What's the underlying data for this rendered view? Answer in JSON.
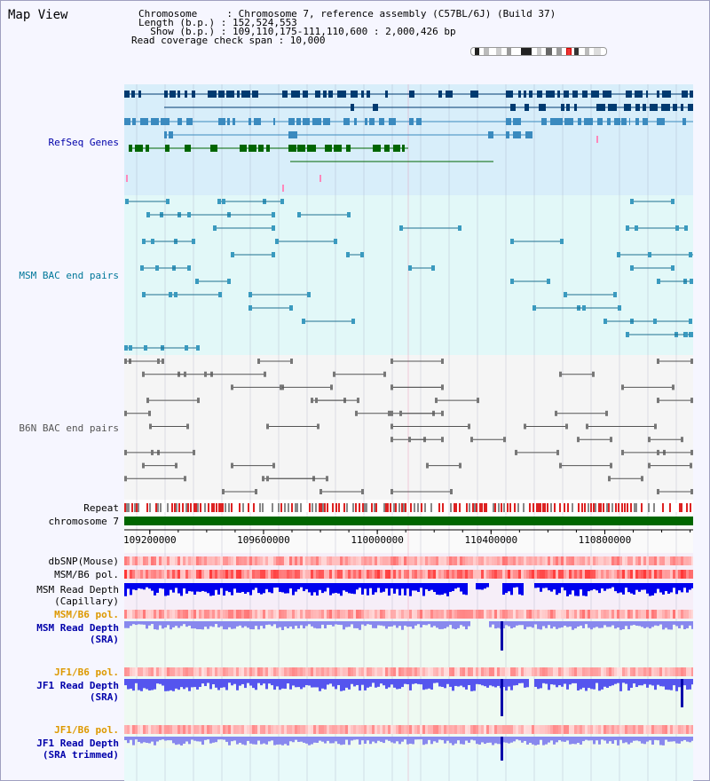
{
  "title": "Map View",
  "info": {
    "chromosome": "Chromosome     : Chromosome 7, reference assembly (C57BL/6J) (Build 37)",
    "length": "Length (b.p.) : 152,524,553",
    "show": "  Show (b.p.) : 109,110,175-111,110,600 : 2,000,426 bp",
    "coverage": "Read coverage check span : 10,000"
  },
  "tracks": {
    "refseq": "RefSeq Genes",
    "msm_bac": "MSM BAC end pairs",
    "b6n_bac": "B6N BAC end pairs",
    "repeat": "Repeat",
    "chromosome": "chromosome 7",
    "dbsnp": "dbSNP(Mouse)",
    "msm_b6_pol_1": "MSM/B6 pol.",
    "msm_read_depth_cap": "MSM Read Depth\n(Capillary)",
    "msm_b6_pol_2": "MSM/B6 pol.",
    "msm_read_depth_sra": "MSM Read Depth\n(SRA)",
    "jf1_b6_pol_1": "JF1/B6 pol.",
    "jf1_read_depth_sra": "JF1 Read Depth\n(SRA)",
    "jf1_b6_pol_2": "JF1/B6 pol.",
    "jf1_read_depth_trim": "JF1 Read Depth\n(SRA trimmed)"
  },
  "axis": {
    "ticks": [
      "109200000",
      "109600000",
      "110000000",
      "110400000",
      "110800000"
    ]
  },
  "colors": {
    "refseq_bg": "#d8eefa",
    "msm_bg": "#e2f8f8",
    "b6n_bg": "#f4f4f4",
    "chromosome_bar": "#006600",
    "label_blue": "#0000aa",
    "label_teal": "#007799",
    "label_orange": "#dd9900",
    "depth_blue": "#0000ee",
    "depth_lightblue": "#7777ff",
    "snp_red": "#dd2222"
  },
  "chart_data": {
    "type": "line",
    "title": "",
    "x_range": [
      109110175,
      111110600
    ],
    "x_ticks": [
      109200000,
      109600000,
      110000000,
      110400000,
      110800000
    ]
  }
}
